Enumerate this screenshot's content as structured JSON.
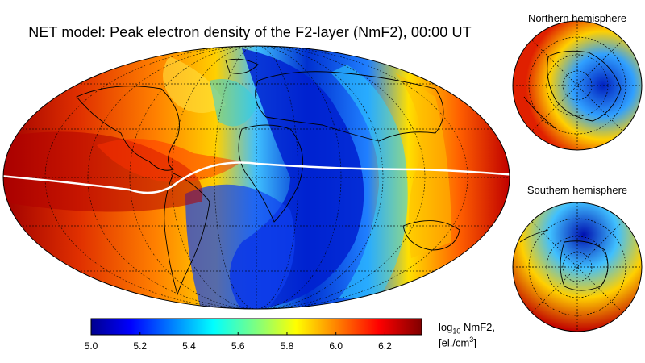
{
  "title": "NET model: Peak electron density of the F2-layer (NmF2), 00:00 UT",
  "insets": {
    "north_label": "Northern hemisphere",
    "south_label": "Southern hemisphere"
  },
  "colorbar": {
    "ticks": [
      "5.0",
      "5.2",
      "5.4",
      "5.6",
      "5.8",
      "6.0",
      "6.2"
    ],
    "range": [
      5.0,
      6.35
    ],
    "unit_prefix": "log",
    "unit_base": "10",
    "unit_name": " NmF2,",
    "unit_line2_prefix": "[el./cm",
    "unit_line2_exp": "3",
    "unit_line2_suffix": "]",
    "colormap": "jet"
  },
  "map": {
    "projection": "Mollweide",
    "overlay": "magnetic equator",
    "overlay_color": "#ffffff"
  }
}
